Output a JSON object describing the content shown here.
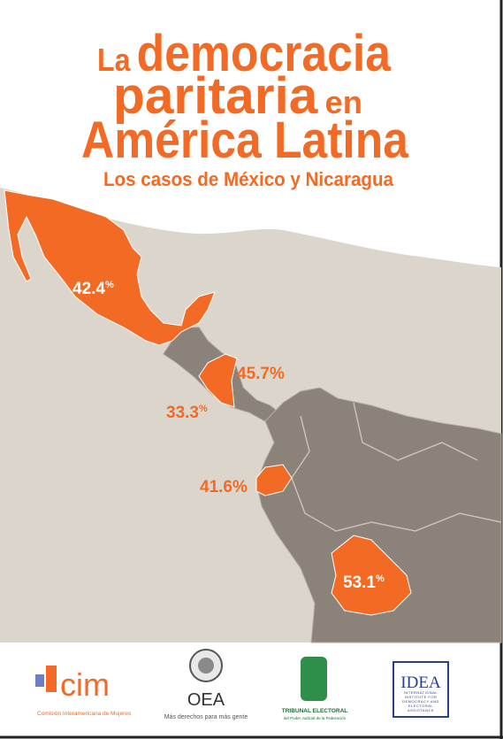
{
  "cover": {
    "title": {
      "line1": [
        "La",
        "democracia"
      ],
      "line2": [
        "paritaria",
        "en"
      ],
      "line3": "América Latina"
    },
    "subtitle": "Los casos de México y Nicaragua",
    "map_labels": [
      {
        "number": "42.4",
        "unit": "%"
      },
      {
        "number": "45.7",
        "unit": "%"
      },
      {
        "number": "33.3",
        "unit": "%"
      },
      {
        "number": "41.6",
        "unit": "%"
      },
      {
        "number": "53.1",
        "unit": "%"
      }
    ],
    "logos": {
      "cim": {
        "name": "cim",
        "caption": "Comisión Interamericana de Mujeres"
      },
      "oea": {
        "name": "OEA",
        "caption": "Más derechos para más gente"
      },
      "tribunal": {
        "name": "TRIBUNAL ELECTORAL",
        "caption": "del Poder Judicial de la Federación"
      },
      "idea": {
        "name": "IDEA",
        "caption": "INTERNATIONAL INSTITUTE FOR DEMOCRACY AND ELECTORAL ASSISTANCE"
      }
    }
  }
}
